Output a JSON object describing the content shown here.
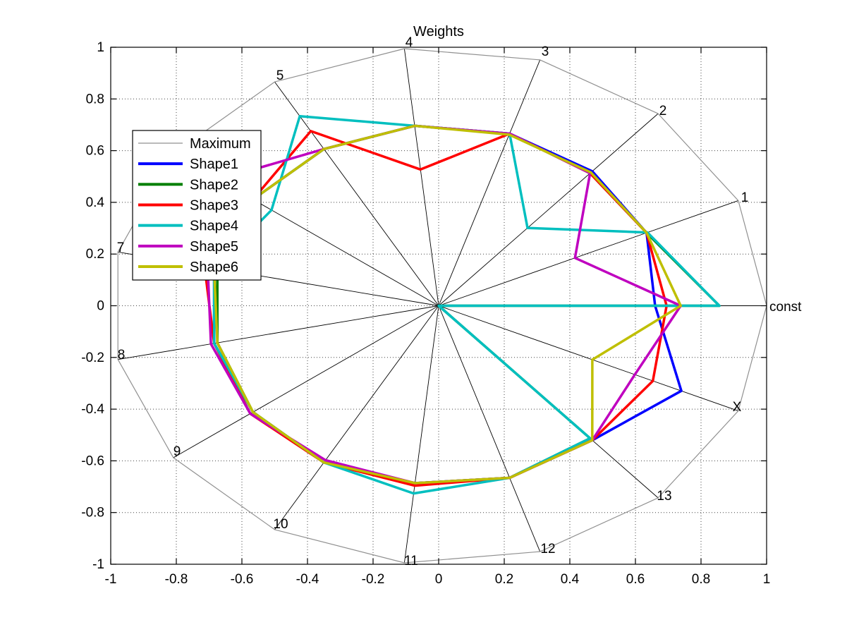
{
  "title": "Weights",
  "chart_data": {
    "type": "radar",
    "title": "Weights",
    "grid": "dotted",
    "legend_position": "upper-left",
    "xlim": [
      -1,
      1
    ],
    "ylim": [
      -1,
      1
    ],
    "x_ticks": [
      "-1",
      "-0.8",
      "-0.6",
      "-0.4",
      "-0.2",
      "0",
      "0.2",
      "0.4",
      "0.6",
      "0.8",
      "1"
    ],
    "y_ticks": [
      "-1",
      "-0.8",
      "-0.6",
      "-0.4",
      "-0.2",
      "0",
      "0.2",
      "0.4",
      "0.6",
      "0.8",
      "1"
    ],
    "axes_labels": [
      "const",
      "1",
      "2",
      "3",
      "4",
      "5",
      "6",
      "7",
      "8",
      "9",
      "10",
      "11",
      "12",
      "13",
      "X"
    ],
    "angle_step_deg": 24,
    "series": [
      {
        "name": "Maximum",
        "color": "#909090",
        "width": 1.2,
        "values": [
          1,
          1,
          1,
          1,
          1,
          1,
          1,
          1,
          1,
          1,
          1,
          1,
          1,
          1,
          1
        ]
      },
      {
        "name": "Shape1",
        "color": "#0000ff",
        "width": 3.5,
        "values": [
          0.66,
          0.694,
          0.7,
          0.7,
          0.7,
          0.7,
          0.7,
          0.7,
          0.7,
          0.7,
          0.7,
          0.69,
          0.7,
          0.7,
          0.81
        ]
      },
      {
        "name": "Shape2",
        "color": "#007f00",
        "width": 3.5,
        "values": [
          0.856,
          0.694,
          0.69,
          0.7,
          0.7,
          0.7,
          0.7,
          0.69,
          0.69,
          0.7,
          0.7,
          0.69,
          0.7,
          0.69,
          0.0
        ]
      },
      {
        "name": "Shape3",
        "color": "#ff0000",
        "width": 3.5,
        "values": [
          0.695,
          0.694,
          0.69,
          0.7,
          0.53,
          0.78,
          0.7,
          0.73,
          0.7,
          0.71,
          0.7,
          0.7,
          0.7,
          0.7,
          0.715
        ]
      },
      {
        "name": "Shape4",
        "color": "#00bfbf",
        "width": 3.5,
        "values": [
          0.856,
          0.697,
          0.405,
          0.7,
          0.7,
          0.847,
          0.63,
          0.7,
          0.7,
          0.7,
          0.7,
          0.73,
          0.7,
          0.69,
          0.0
        ]
      },
      {
        "name": "Shape5",
        "color": "#bf00bf",
        "width": 3.5,
        "values": [
          0.738,
          0.455,
          0.69,
          0.7,
          0.7,
          0.7,
          0.83,
          0.72,
          0.71,
          0.71,
          0.69,
          0.69,
          0.7,
          0.7,
          0.655
        ]
      },
      {
        "name": "Shape6",
        "color": "#bfbf00",
        "width": 3.5,
        "values": [
          0.738,
          0.694,
          0.694,
          0.696,
          0.7,
          0.7,
          0.7,
          0.7,
          0.69,
          0.7,
          0.7,
          0.69,
          0.7,
          0.7,
          0.513
        ]
      }
    ],
    "legend_entries": [
      "Maximum",
      "Shape1",
      "Shape2",
      "Shape3",
      "Shape4",
      "Shape5",
      "Shape6"
    ]
  }
}
